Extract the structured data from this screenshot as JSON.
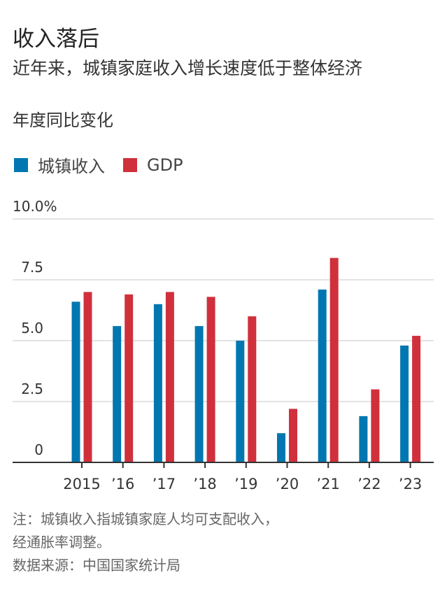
{
  "header": {
    "title": "收入落后",
    "subtitle": "近年来，城镇家庭收入增长速度低于整体经济",
    "unit_label": "年度同比变化"
  },
  "legend": [
    {
      "label": "城镇收入",
      "color": "#0077b0"
    },
    {
      "label": "GDP",
      "color": "#d0303c"
    }
  ],
  "chart_data": {
    "type": "bar",
    "title": "收入落后",
    "subtitle": "近年来，城镇家庭收入增长速度低于整体经济",
    "ylabel": "年度同比变化",
    "categories": [
      "2015",
      "’16",
      "’17",
      "’18",
      "’19",
      "’20",
      "’21",
      "’22",
      "’23"
    ],
    "series": [
      {
        "name": "城镇收入",
        "color": "#0077b0",
        "values": [
          6.6,
          5.6,
          6.5,
          5.6,
          5.0,
          1.2,
          7.1,
          1.9,
          4.8
        ]
      },
      {
        "name": "GDP",
        "color": "#d0303c",
        "values": [
          7.0,
          6.9,
          7.0,
          6.8,
          6.0,
          2.2,
          8.4,
          3.0,
          5.2
        ]
      }
    ],
    "ylim": [
      0,
      10
    ],
    "yticks": [
      {
        "value": 10,
        "label": "10.0%"
      },
      {
        "value": 7.5,
        "label": "7.5"
      },
      {
        "value": 5,
        "label": "5.0"
      },
      {
        "value": 2.5,
        "label": "2.5"
      },
      {
        "value": 0,
        "label": "0"
      }
    ],
    "grid": true,
    "legend_position": "top-left"
  },
  "footer": {
    "note_line1": "注：城镇收入指城镇家庭人均可支配收入，",
    "note_line2": "经通胀率调整。",
    "source": "数据来源：中国国家统计局"
  }
}
